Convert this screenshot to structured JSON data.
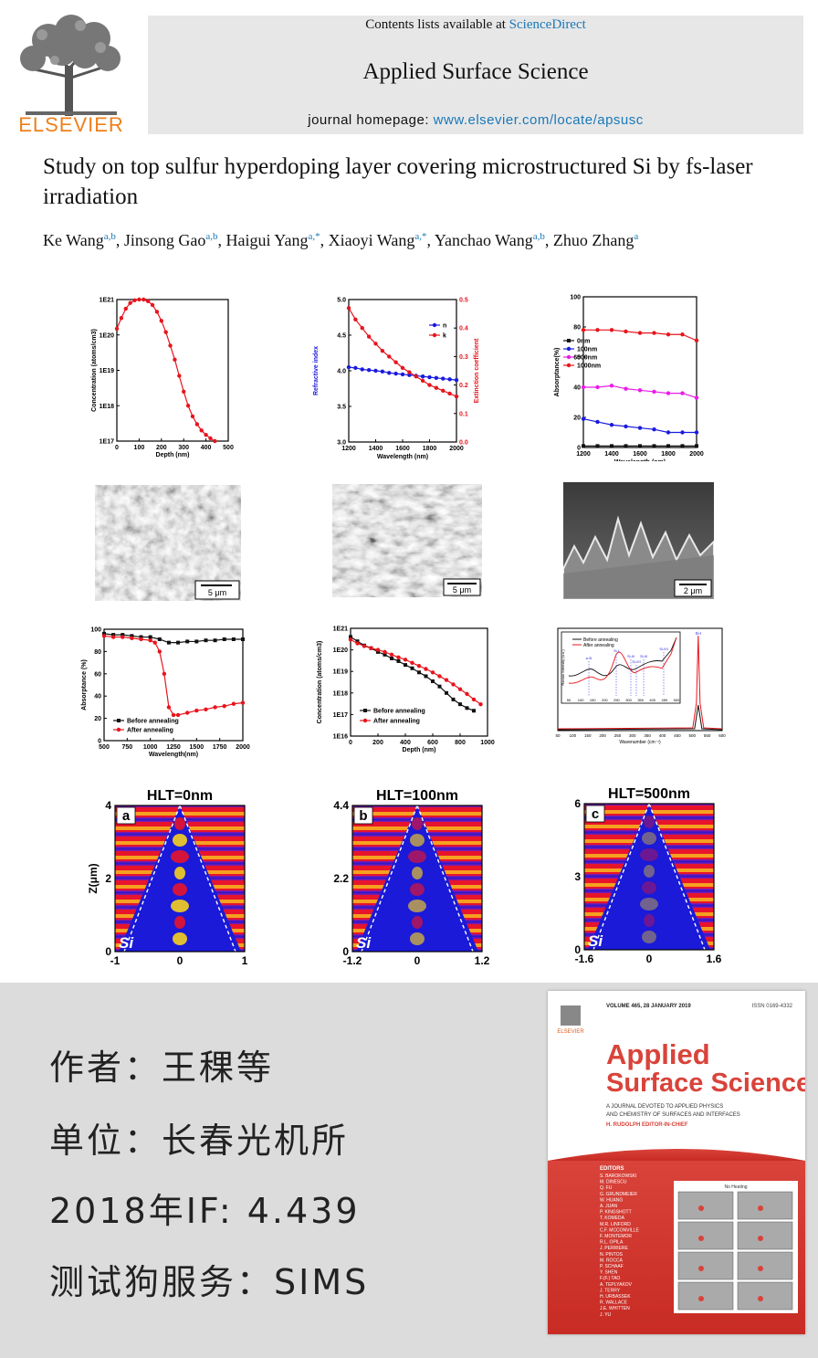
{
  "header": {
    "publisher_logo_text": "ELSEVIER",
    "contents_prefix": "Contents lists available at ",
    "contents_link": "ScienceDirect",
    "journal_title": "Applied Surface Science",
    "homepage_prefix": "journal homepage: ",
    "homepage_url": "www.elsevier.com/locate/apsusc"
  },
  "article": {
    "title": "Study on top sulfur hyperdoping layer covering microstructured Si by fs-laser irradiation",
    "authors": [
      {
        "name": "Ke Wang",
        "aff": "a,b"
      },
      {
        "name": "Jinsong Gao",
        "aff": "a,b"
      },
      {
        "name": "Haigui Yang",
        "aff": "a,*"
      },
      {
        "name": "Xiaoyi Wang",
        "aff": "a,*"
      },
      {
        "name": "Yanchao Wang",
        "aff": "a,b"
      },
      {
        "name": "Zhuo Zhang",
        "aff": "a"
      }
    ]
  },
  "sem_scale": [
    "5 μm",
    "5 μm",
    "2 μm"
  ],
  "colors": {
    "red": "#e8141c",
    "black": "#111111",
    "blue": "#1a1ae0",
    "magenta": "#e81ce8",
    "link": "#1a78b8"
  },
  "chart_data": [
    {
      "type": "line",
      "xlabel": "Depth (nm)",
      "ylabel": "Concentration (atoms/cm3)",
      "xlim": [
        0,
        500
      ],
      "ylim": [
        1e+17,
        1e+21
      ],
      "log_y": true,
      "x_ticks": [
        "0",
        "100",
        "200",
        "300",
        "400",
        "500"
      ],
      "y_ticks": [
        "1E17",
        "1E18",
        "1E19",
        "1E20",
        "1E21"
      ],
      "series": [
        {
          "color": "#e8141c",
          "x": [
            0,
            20,
            40,
            60,
            80,
            100,
            120,
            140,
            160,
            180,
            200,
            220,
            240,
            260,
            280,
            300,
            320,
            340,
            360,
            380,
            400,
            420,
            440
          ],
          "y": [
            1.5e+20,
            3e+20,
            5.5e+20,
            8e+20,
            9.5e+20,
            1e+21,
            1e+21,
            9e+20,
            7e+20,
            4.5e+20,
            2.5e+20,
            1.2e+20,
            5e+19,
            2e+19,
            7e+18,
            2.5e+18,
            1e+18,
            5e+17,
            3e+17,
            2e+17,
            1.5e+17,
            1.2e+17,
            1e+17
          ]
        }
      ]
    },
    {
      "type": "line",
      "xlabel": "Wavelength (nm)",
      "ylabel": "Refractive index",
      "y2label": "Extinction coefficient",
      "xlim": [
        1200,
        2000
      ],
      "ylim": [
        3.0,
        5.0
      ],
      "y2lim": [
        0,
        0.5
      ],
      "x_ticks": [
        "1200",
        "1400",
        "1600",
        "1800",
        "2000"
      ],
      "y_ticks": [
        "3.0",
        "3.5",
        "4.0",
        "4.5",
        "5.0"
      ],
      "y2_ticks": [
        "0.0",
        "0.1",
        "0.2",
        "0.3",
        "0.4",
        "0.5"
      ],
      "legend": "top-right",
      "series": [
        {
          "name": "n",
          "color": "#1a1ae0",
          "axis": "left",
          "x": [
            1200,
            1250,
            1300,
            1350,
            1400,
            1450,
            1500,
            1550,
            1600,
            1650,
            1700,
            1750,
            1800,
            1850,
            1900,
            1950,
            2000
          ],
          "y": [
            4.05,
            4.04,
            4.02,
            4.01,
            4.0,
            3.99,
            3.97,
            3.96,
            3.95,
            3.94,
            3.93,
            3.92,
            3.91,
            3.9,
            3.89,
            3.88,
            3.87
          ]
        },
        {
          "name": "k",
          "color": "#e8141c",
          "axis": "right",
          "x": [
            1200,
            1250,
            1300,
            1350,
            1400,
            1450,
            1500,
            1550,
            1600,
            1650,
            1700,
            1750,
            1800,
            1850,
            1900,
            1950,
            2000
          ],
          "y": [
            0.47,
            0.43,
            0.4,
            0.37,
            0.345,
            0.32,
            0.3,
            0.28,
            0.26,
            0.245,
            0.23,
            0.215,
            0.2,
            0.19,
            0.18,
            0.17,
            0.16
          ]
        }
      ]
    },
    {
      "type": "line",
      "xlabel": "Wavelength (nm)",
      "ylabel": "Absorptance(%)",
      "xlim": [
        1200,
        2000
      ],
      "ylim": [
        0,
        100
      ],
      "x_ticks": [
        "1200",
        "1400",
        "1600",
        "1800",
        "2000"
      ],
      "y_ticks": [
        "0",
        "20",
        "40",
        "60",
        "80",
        "100"
      ],
      "legend": "middle-left",
      "series": [
        {
          "name": "0nm",
          "color": "#111111",
          "x": [
            1200,
            1300,
            1400,
            1500,
            1600,
            1700,
            1800,
            1900,
            2000
          ],
          "y": [
            1,
            1,
            1,
            1,
            1,
            1,
            1,
            1,
            1
          ]
        },
        {
          "name": "100nm",
          "color": "#1a1ae0",
          "x": [
            1200,
            1300,
            1400,
            1500,
            1600,
            1700,
            1800,
            1900,
            2000
          ],
          "y": [
            19,
            17,
            15,
            14,
            13,
            12,
            10,
            10,
            10
          ]
        },
        {
          "name": "500nm",
          "color": "#e81ce8",
          "x": [
            1200,
            1300,
            1400,
            1500,
            1600,
            1700,
            1800,
            1900,
            2000
          ],
          "y": [
            40,
            40,
            41,
            39,
            38,
            37,
            36,
            36,
            33
          ]
        },
        {
          "name": "1000nm",
          "color": "#e8141c",
          "x": [
            1200,
            1300,
            1400,
            1500,
            1600,
            1700,
            1800,
            1900,
            2000
          ],
          "y": [
            78,
            78,
            78,
            77,
            76,
            76,
            75,
            75,
            71
          ]
        }
      ]
    },
    {
      "type": "line",
      "xlabel": "Wavelength(nm)",
      "ylabel": "Absorptance (%)",
      "xlim": [
        500,
        2000
      ],
      "ylim": [
        0,
        100
      ],
      "x_ticks": [
        "500",
        "750",
        "1000",
        "1250",
        "1500",
        "1750",
        "2000"
      ],
      "y_ticks": [
        "0",
        "20",
        "40",
        "60",
        "80",
        "100"
      ],
      "legend": "bottom-left",
      "series": [
        {
          "name": "Before annealing",
          "color": "#111111",
          "x": [
            500,
            600,
            700,
            800,
            900,
            1000,
            1100,
            1200,
            1300,
            1400,
            1500,
            1600,
            1700,
            1800,
            1900,
            2000
          ],
          "y": [
            96,
            95,
            95,
            94,
            93,
            93,
            91,
            88,
            88,
            89,
            89,
            90,
            90,
            91,
            91,
            91
          ]
        },
        {
          "name": "After annealing",
          "color": "#e8141c",
          "x": [
            500,
            600,
            700,
            800,
            900,
            1000,
            1050,
            1100,
            1150,
            1200,
            1250,
            1300,
            1400,
            1500,
            1600,
            1700,
            1800,
            1900,
            2000
          ],
          "y": [
            94,
            93,
            93,
            92,
            91,
            90,
            88,
            80,
            60,
            30,
            23,
            23,
            25,
            27,
            28,
            30,
            31,
            33,
            34
          ]
        }
      ]
    },
    {
      "type": "line",
      "xlabel": "Depth (nm)",
      "ylabel": "Concentration (atoms/cm3)",
      "xlim": [
        0,
        1000
      ],
      "ylim": [
        1e+16,
        1e+21
      ],
      "log_y": true,
      "x_ticks": [
        "0",
        "200",
        "400",
        "600",
        "800",
        "1000"
      ],
      "y_ticks": [
        "1E16",
        "1E17",
        "1E18",
        "1E19",
        "1E20",
        "1E21"
      ],
      "legend": "bottom-center",
      "series": [
        {
          "name": "Before annealing",
          "color": "#111111",
          "x": [
            0,
            50,
            100,
            150,
            200,
            250,
            300,
            350,
            400,
            450,
            500,
            550,
            600,
            650,
            700,
            750,
            800,
            850,
            900
          ],
          "y": [
            4e+20,
            2.5e+20,
            1.6e+20,
            1.2e+20,
            8e+19,
            6e+19,
            4e+19,
            3e+19,
            2e+19,
            1.4e+19,
            9e+18,
            6e+18,
            3.5e+18,
            2e+18,
            1e+18,
            5e+17,
            3e+17,
            2e+17,
            1.5e+17
          ]
        },
        {
          "name": "After annealing",
          "color": "#e8141c",
          "x": [
            0,
            50,
            100,
            150,
            200,
            250,
            300,
            350,
            400,
            450,
            500,
            550,
            600,
            650,
            700,
            750,
            800,
            850,
            900,
            950
          ],
          "y": [
            3e+20,
            2e+20,
            1.5e+20,
            1.2e+20,
            1e+20,
            8e+19,
            6e+19,
            4.5e+19,
            3.5e+19,
            2.5e+19,
            1.8e+19,
            1.3e+19,
            9e+18,
            6e+18,
            4e+18,
            2.5e+18,
            1.5e+18,
            9e+17,
            5e+17,
            3e+17
          ]
        }
      ]
    },
    {
      "type": "line",
      "xlabel": "Wavenumber (cm⁻¹)",
      "ylabel": "Raman Intensity (a.u.)",
      "xlim": [
        50,
        600
      ],
      "x_ticks": [
        "50",
        "100",
        "150",
        "200",
        "250",
        "300",
        "350",
        "400",
        "450",
        "500",
        "550",
        "600"
      ],
      "legend": "top-left",
      "annotations": [
        "Si-I"
      ],
      "inset": {
        "x_ticks": [
          "50",
          "100",
          "150",
          "200",
          "250",
          "300",
          "350",
          "400",
          "450",
          "500"
        ],
        "annotations": [
          "a-Si",
          "Si-I",
          "Si-III",
          "Si-XII",
          "Si-III",
          "Si-XII"
        ]
      },
      "series": [
        {
          "name": "Before annealing",
          "color": "#111111"
        },
        {
          "name": "After annealing",
          "color": "#e8141c"
        }
      ]
    },
    {
      "type": "heatmap",
      "title": "HLT=0nm",
      "panel": "a",
      "ylabel": "Z(μm)",
      "x_ticks": [
        "-1",
        "0",
        "1"
      ],
      "y_ticks": [
        "0",
        "2",
        "4"
      ],
      "annotations": [
        "Si"
      ]
    },
    {
      "type": "heatmap",
      "title": "HLT=100nm",
      "panel": "b",
      "x_ticks": [
        "-1.2",
        "0",
        "1.2"
      ],
      "y_ticks": [
        "0",
        "2.2",
        "4.4"
      ],
      "annotations": [
        "Si"
      ]
    },
    {
      "type": "heatmap",
      "title": "HLT=500nm",
      "panel": "c",
      "x_ticks": [
        "-1.6",
        "0",
        "1.6"
      ],
      "y_ticks": [
        "0",
        "3",
        "6"
      ],
      "annotations": [
        "Si"
      ]
    }
  ],
  "info": {
    "author_line": "作者：王稞等",
    "unit_line": "单位：长春光机所",
    "if_line": "2018年IF: 4.439",
    "service_line": "测试狗服务：SIMS"
  },
  "cover": {
    "volume": "VOLUME 465, 28 JANUARY 2019",
    "issn": "ISSN 0169-4332",
    "publisher": "ELSEVIER",
    "title_line1": "Applied",
    "title_line2": "Surface Science",
    "subtitle1": "A JOURNAL DEVOTED TO APPLIED PHYSICS",
    "subtitle2": "AND CHEMISTRY OF SURFACES AND INTERFACES",
    "editor": "H. RUDOLPH",
    "editor_role": "EDITOR-IN-CHIEF",
    "editors_heading": "EDITORS",
    "editors": [
      "S. BAROKOWSKI",
      "M. DINESCU",
      "Q. FU",
      "G. GRUNDMEIER",
      "W. HUANG",
      "A. JUAN",
      "P. KINGSHOTT",
      "T. KOMEDA",
      "M.R. LINFORD",
      "C.F. MCCONVILLE",
      "F. MONTEMOR",
      "R.L. OPILA",
      "J. PERRIERE",
      "N. PINTOS",
      "M. ROCCA",
      "P. SCHAAF",
      "Y. SHEN",
      "F.(F.) TAO",
      "A. TEPLYAKOV",
      "J. TERRY",
      "H. URBASSEK",
      "R. WALLACE",
      "J.E. WHITTEN",
      "J. YU"
    ],
    "image_caption": "No Heating"
  }
}
